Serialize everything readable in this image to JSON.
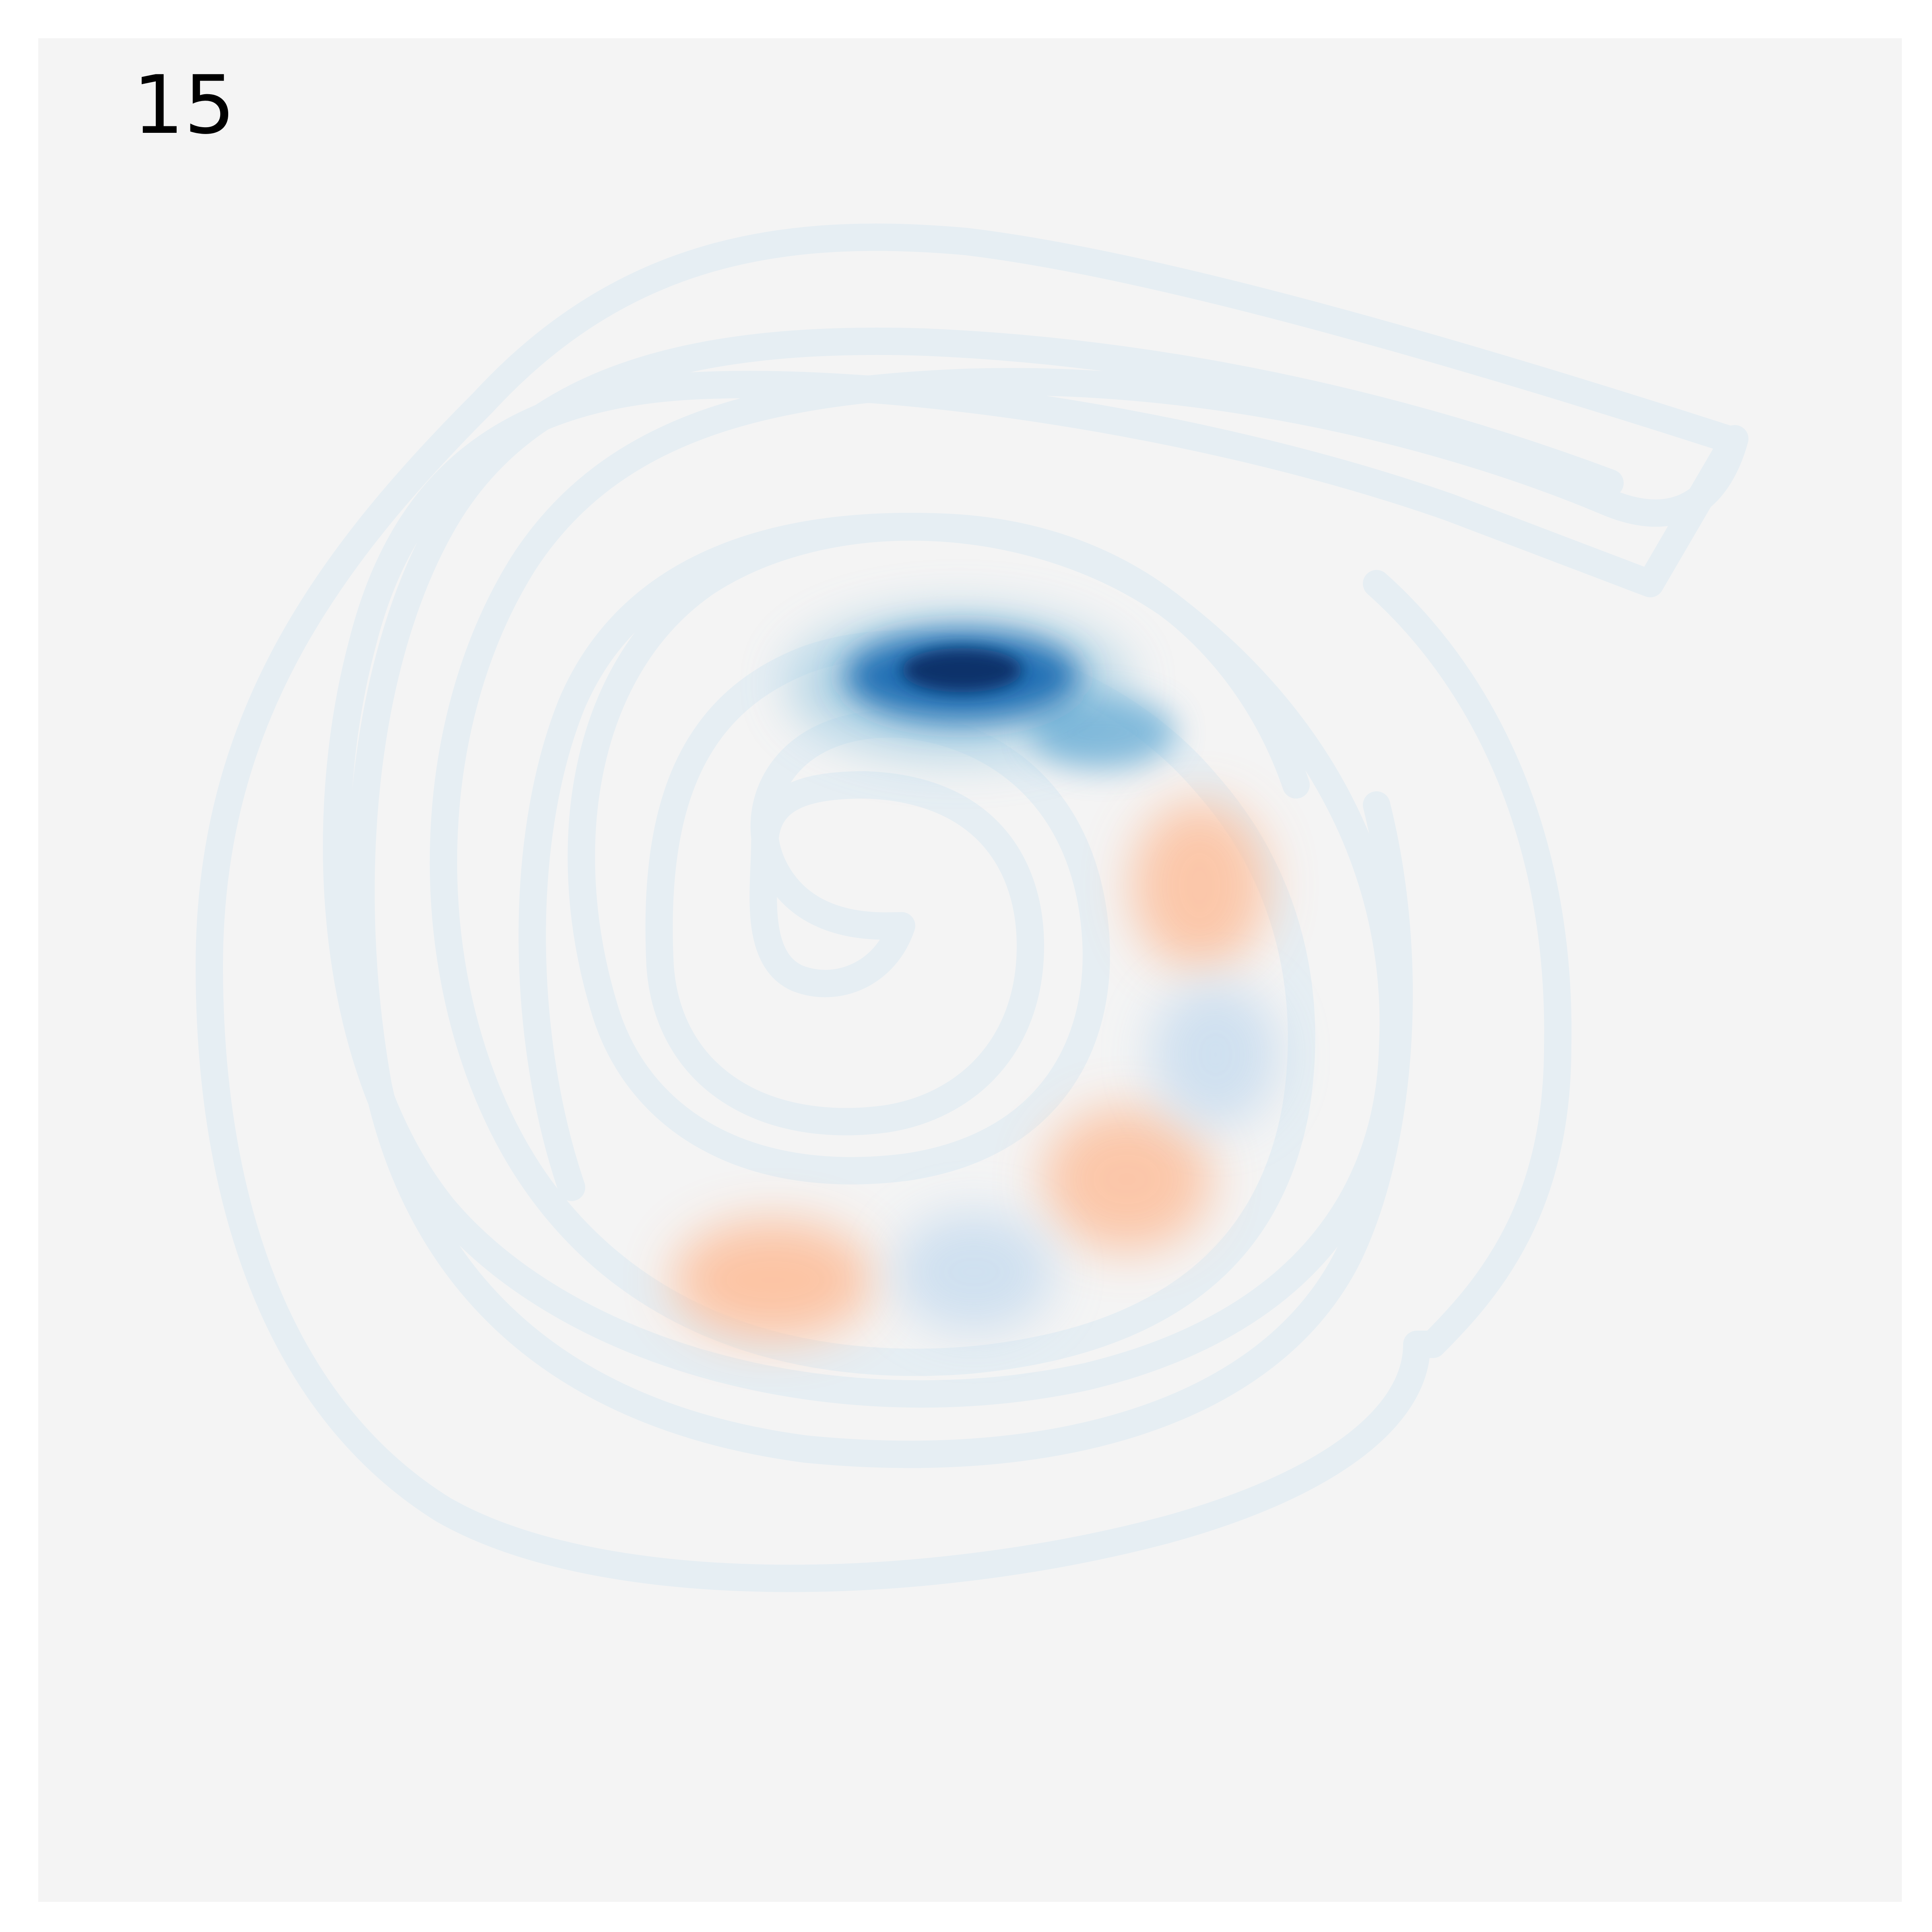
{
  "panel": {
    "label": "15",
    "background_color": "#f4f4f4",
    "domain_outline_color": "#e6eef3"
  },
  "colormap": {
    "name": "RdBu_r",
    "negative_color": "#08306b",
    "positive_color": "#fdbf9c"
  }
}
